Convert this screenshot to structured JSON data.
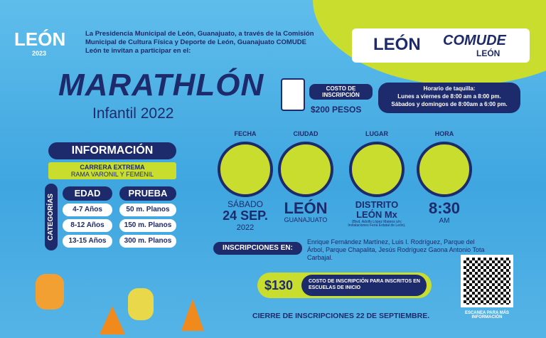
{
  "header": {
    "logo": "LEÓN",
    "logo_year": "2023",
    "intro": "La Presidencia Municipal de León, Guanajuato, a través de la Comisión Municipal de Cultura Física y Deporte de León, Guanajuato COMUDE León te invitan a participar en el:",
    "partner_1": "LEÓN",
    "partner_2": "COMUDE",
    "partner_2_sub": "LEÓN"
  },
  "title": "MARATHLÓN",
  "subtitle": "Infantil 2022",
  "cost": {
    "label": "COSTO DE INSCRIPCIÓN",
    "value": "$200 PESOS"
  },
  "schedule": {
    "title": "Horario de taquilla:",
    "lines": [
      "Lunes a viernes de 8:00 am a 8:00 pm.",
      "Sábados y domingos de 8:00am a 6:00 pm."
    ]
  },
  "info": {
    "title": "INFORMACIÓN",
    "race": "CARRERA EXTREMA",
    "branch": "RAMA VARONIL Y FEMENIL",
    "side_label": "CATEGORÍAS",
    "headers": [
      "EDAD",
      "PRUEBA"
    ],
    "rows": [
      [
        "4-7 Años",
        "50 m. Planos"
      ],
      [
        "8-12 Años",
        "150 m. Planos"
      ],
      [
        "13-15 Años",
        "300 m. Planos"
      ]
    ]
  },
  "details": [
    {
      "label": "FECHA",
      "lines": [
        "SÁBADO",
        "24 SEP.",
        "2022"
      ]
    },
    {
      "label": "CIUDAD",
      "lines": [
        "LEÓN",
        "GUANAJUATO"
      ]
    },
    {
      "label": "LUGAR",
      "lines": [
        "DISTRITO",
        "LEÓN Mx",
        "(Blvd. Adolfo López Mateos s/n; Instalaciones Feria Estatal de León)."
      ]
    },
    {
      "label": "HORA",
      "lines": [
        "8:30",
        "AM"
      ]
    }
  ],
  "registration": {
    "label": "INSCRIPCIONES EN:",
    "text": "Enrique Fernández Martínez, Luis I. Rodríguez, Parque del Árbol, Parque Chapalita, Jesús Rodríguez Gaona Antonio Tota Carbajal."
  },
  "discount": {
    "price": "$130",
    "text": "COSTO DE INSCRIPCIÓN PARA INSCRITOS EN ESCUELAS DE INICIO"
  },
  "closing": "CIERRE DE INSCRIPCIONES 22 DE SEPTIEMBRE.",
  "qr_caption": "ESCANEA PARA MÁS INFORMACIÓN"
}
